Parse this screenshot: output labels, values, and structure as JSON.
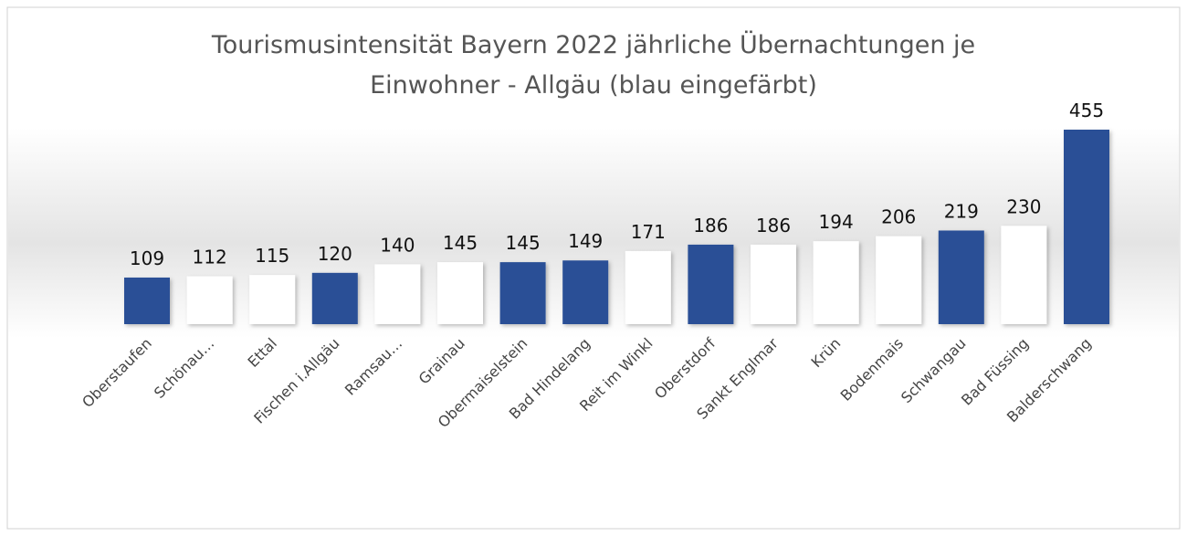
{
  "chart_data": {
    "type": "bar",
    "title": "Tourismusintensität Bayern 2022 jährliche Übernachtungen je Einwohner - Allgäu (blau eingefärbt)",
    "categories": [
      "Oberstaufen",
      "Schönau…",
      "Ettal",
      "Fischen i.Allgäu",
      "Ramsau…",
      "Grainau",
      "Obermaiselstein",
      "Bad Hindelang",
      "Reit im Winkl",
      "Oberstdorf",
      "Sankt Englmar",
      "Krün",
      "Bodenmais",
      "Schwangau",
      "Bad Füssing",
      "Balderschwang"
    ],
    "values": [
      109,
      112,
      115,
      120,
      140,
      145,
      145,
      149,
      171,
      186,
      186,
      194,
      206,
      219,
      230,
      455
    ],
    "colors": [
      "#2a4f96",
      "#ffffff",
      "#ffffff",
      "#2a4f96",
      "#ffffff",
      "#ffffff",
      "#2a4f96",
      "#2a4f96",
      "#ffffff",
      "#2a4f96",
      "#ffffff",
      "#ffffff",
      "#ffffff",
      "#2a4f96",
      "#ffffff",
      "#2a4f96"
    ]
  }
}
